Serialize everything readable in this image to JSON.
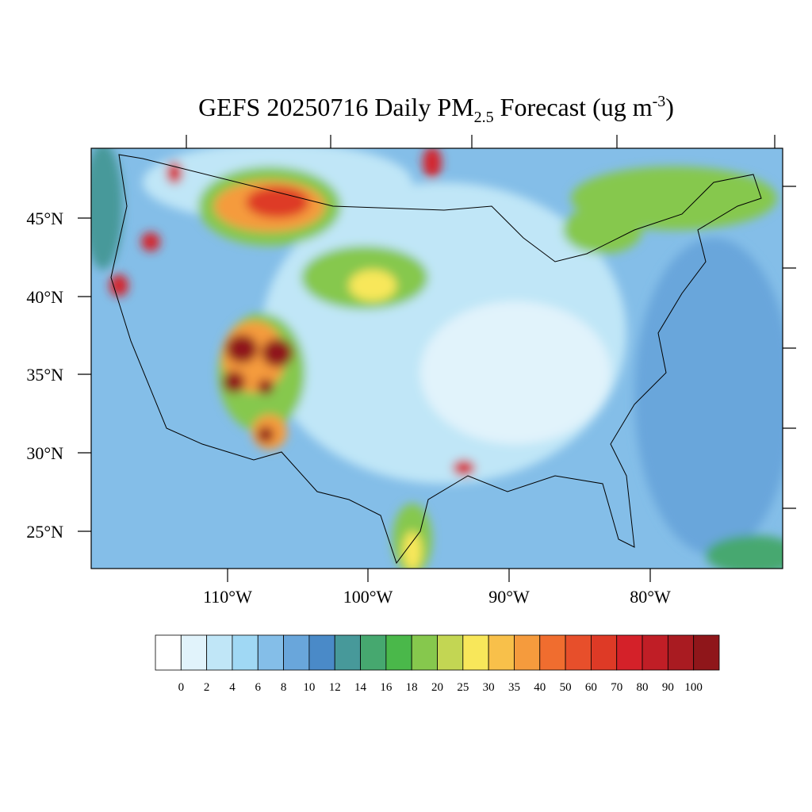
{
  "title": {
    "main": "GEFS 20250716 Daily PM",
    "subscript": "2.5",
    "middle": " Forecast (ug m",
    "superscript": "-3",
    "end": ")"
  },
  "lat_labels": [
    "45°N",
    "40°N",
    "35°N",
    "30°N",
    "25°N"
  ],
  "lon_labels": [
    "110°W",
    "100°W",
    "90°W",
    "80°W"
  ],
  "colorbar": {
    "colors": [
      "#ffffff",
      "#e1f3fb",
      "#c0e6f7",
      "#a0d8f4",
      "#84bee8",
      "#69a6db",
      "#4a8ac8",
      "#47999a",
      "#46a86f",
      "#4ab84a",
      "#86c84d",
      "#c3d653",
      "#f8e75a",
      "#f8c04a",
      "#f59b3d",
      "#f06d2f",
      "#e74f2b",
      "#de3a26",
      "#d42129",
      "#c01e26",
      "#a91b21",
      "#8f161a"
    ],
    "labels": [
      "0",
      "2",
      "4",
      "6",
      "8",
      "10",
      "12",
      "14",
      "16",
      "18",
      "20",
      "25",
      "30",
      "35",
      "40",
      "50",
      "60",
      "70",
      "80",
      "90",
      "100"
    ]
  }
}
